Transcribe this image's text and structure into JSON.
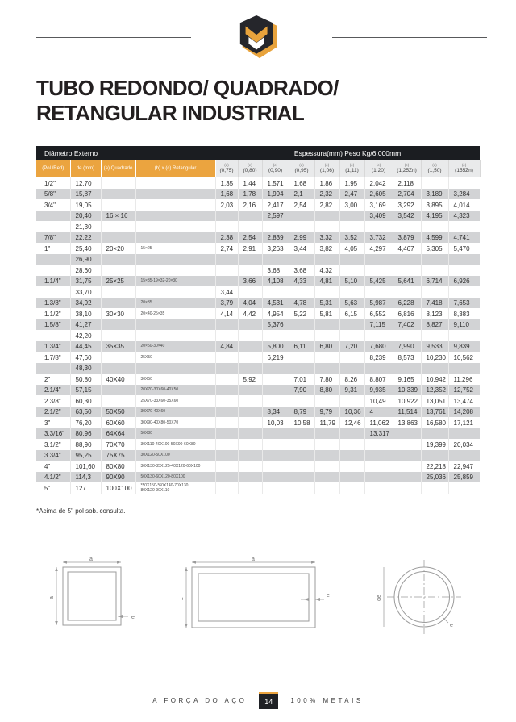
{
  "colors": {
    "accent": "#E8A33C",
    "header_dark": "#1B1D21",
    "row_alt": "#D2D3D5",
    "subheader_gray": "#E9EAEB"
  },
  "title": {
    "line1": "TUBO REDONDO/ QUADRADO/",
    "line2": "RETANGULAR INDUSTRIAL"
  },
  "table": {
    "group_headers": [
      "Diâmetro Externo",
      "Espessura(mm) Peso Kg/6.000mm"
    ],
    "dim_columns": [
      "(Pol./Red)",
      "de (mm)",
      "(a) Quadrado",
      "(b) x (c) Retangular"
    ],
    "thickness_unit": "(e)",
    "thickness_columns": [
      "(0,75)",
      "(0,80)",
      "(0,90)",
      "(0,95)",
      "(1,06)",
      "(1,11)",
      "(1,20)",
      "(1,25Zn)",
      "(1,50)",
      "(155Zn)"
    ],
    "rows": [
      {
        "pol": "1/2\"",
        "mm": "12,70",
        "quad": "",
        "ret": "",
        "vals": [
          "1,35",
          "1,44",
          "1,571",
          "1,68",
          "1,86",
          "1,95",
          "2,042",
          "2,118",
          "",
          ""
        ]
      },
      {
        "pol": "5/8\"",
        "mm": "15,87",
        "quad": "",
        "ret": "",
        "vals": [
          "1,68",
          "1,78",
          "1,994",
          "2,1",
          "2,32",
          "2,47",
          "2,605",
          "2,704",
          "3,189",
          "3,284"
        ]
      },
      {
        "pol": "3/4\"",
        "mm": "19,05",
        "quad": "",
        "ret": "",
        "vals": [
          "2,03",
          "2,16",
          "2,417",
          "2,54",
          "2,82",
          "3,00",
          "3,169",
          "3,292",
          "3,895",
          "4,014"
        ]
      },
      {
        "pol": "",
        "mm": "20,40",
        "quad": "16 × 16",
        "ret": "",
        "vals": [
          "",
          "",
          "2,597",
          "",
          "",
          "",
          "3,409",
          "3,542",
          "4,195",
          "4,323"
        ]
      },
      {
        "pol": "",
        "mm": "21,30",
        "quad": "",
        "ret": "",
        "vals": [
          "",
          "",
          "",
          "",
          "",
          "",
          "",
          "",
          "",
          ""
        ]
      },
      {
        "pol": "7/8\"",
        "mm": "22,22",
        "quad": "",
        "ret": "",
        "vals": [
          "2,38",
          "2,54",
          "2,839",
          "2,99",
          "3,32",
          "3,52",
          "3,732",
          "3,879",
          "4,599",
          "4,741"
        ]
      },
      {
        "pol": "1\"",
        "mm": "25,40",
        "quad": "20×20",
        "ret": "15×25",
        "vals": [
          "2,74",
          "2,91",
          "3,263",
          "3,44",
          "3,82",
          "4,05",
          "4,297",
          "4,467",
          "5,305",
          "5,470"
        ]
      },
      {
        "pol": "",
        "mm": "26,90",
        "quad": "",
        "ret": "",
        "vals": [
          "",
          "",
          "",
          "",
          "",
          "",
          "",
          "",
          "",
          ""
        ]
      },
      {
        "pol": "",
        "mm": "28,60",
        "quad": "",
        "ret": "",
        "vals": [
          "",
          "",
          "3,68",
          "3,68",
          "4,32",
          "",
          "",
          "",
          "",
          ""
        ]
      },
      {
        "pol": "1.1/4\"",
        "mm": "31,75",
        "quad": "25×25",
        "ret": "15×35-19×32-20×30",
        "vals": [
          "",
          "3,66",
          "4,108",
          "4,33",
          "4,81",
          "5,10",
          "5,425",
          "5,641",
          "6,714",
          "6,926"
        ]
      },
      {
        "pol": "",
        "mm": "33,70",
        "quad": "",
        "ret": "",
        "vals": [
          "3,44",
          "",
          "",
          "",
          "",
          "",
          "",
          "",
          "",
          ""
        ]
      },
      {
        "pol": "1.3/8\"",
        "mm": "34,92",
        "quad": "",
        "ret": "20×35",
        "vals": [
          "3,79",
          "4,04",
          "4,531",
          "4,78",
          "5,31",
          "5,63",
          "5,987",
          "6,228",
          "7,418",
          "7,653"
        ]
      },
      {
        "pol": "1.1/2\"",
        "mm": "38,10",
        "quad": "30×30",
        "ret": "20×40-25×35",
        "vals": [
          "4,14",
          "4,42",
          "4,954",
          "5,22",
          "5,81",
          "6,15",
          "6,552",
          "6,816",
          "8,123",
          "8,383"
        ]
      },
      {
        "pol": "1.5/8\"",
        "mm": "41,27",
        "quad": "",
        "ret": "",
        "vals": [
          "",
          "",
          "5,376",
          "",
          "",
          "",
          "7,115",
          "7,402",
          "8,827",
          "9,110"
        ]
      },
      {
        "pol": "",
        "mm": "42,20",
        "quad": "",
        "ret": "",
        "vals": [
          "",
          "",
          "",
          "",
          "",
          "",
          "",
          "",
          "",
          ""
        ]
      },
      {
        "pol": "1.3/4\"",
        "mm": "44,45",
        "quad": "35×35",
        "ret": "20×50-30×40",
        "vals": [
          "4,84",
          "",
          "5,800",
          "6,11",
          "6,80",
          "7,20",
          "7,680",
          "7,990",
          "9,533",
          "9,839"
        ]
      },
      {
        "pol": "1.7/8\"",
        "mm": "47,60",
        "quad": "",
        "ret": "25X50",
        "vals": [
          "",
          "",
          "6,219",
          "",
          "",
          "",
          "8,239",
          "8,573",
          "10,230",
          "10,562"
        ]
      },
      {
        "pol": "",
        "mm": "48,30",
        "quad": "",
        "ret": "",
        "vals": [
          "",
          "",
          "",
          "",
          "",
          "",
          "",
          "",
          "",
          ""
        ]
      },
      {
        "pol": "2\"",
        "mm": "50,80",
        "quad": "40X40",
        "ret": "30X50",
        "vals": [
          "",
          "5,92",
          "",
          "7,01",
          "7,80",
          "8,26",
          "8,807",
          "9,165",
          "10,942",
          "11,296"
        ]
      },
      {
        "pol": "2.1/4\"",
        "mm": "57,15",
        "quad": "",
        "ret": "20X70-30X60-40X50",
        "vals": [
          "",
          "",
          "",
          "7,90",
          "8,80",
          "9,31",
          "9,935",
          "10,339",
          "12,352",
          "12,752"
        ]
      },
      {
        "pol": "2.3/8\"",
        "mm": "60,30",
        "quad": "",
        "ret": "25X70-33X60-35X60",
        "vals": [
          "",
          "",
          "",
          "",
          "",
          "",
          "10,49",
          "10,922",
          "13,051",
          "13,474"
        ]
      },
      {
        "pol": "2.1/2\"",
        "mm": "63,50",
        "quad": "50X50",
        "ret": "30X70-40X60",
        "vals": [
          "",
          "",
          "8,34",
          "8,79",
          "9,79",
          "10,36",
          "4",
          "11,514",
          "13,761",
          "14,208"
        ]
      },
      {
        "pol": "3\"",
        "mm": "76,20",
        "quad": "60X60",
        "ret": "30X90-40X80-50X70",
        "vals": [
          "",
          "",
          "10,03",
          "10,58",
          "11,79",
          "12,46",
          "11,062",
          "13,863",
          "16,580",
          "17,121"
        ]
      },
      {
        "pol": "3.3/16\"",
        "mm": "80,96",
        "quad": "64X64",
        "ret": "50X80",
        "vals": [
          "",
          "",
          "",
          "",
          "",
          "",
          "13,317",
          "",
          "",
          ""
        ]
      },
      {
        "pol": "3.1/2\"",
        "mm": "88,90",
        "quad": "70X70",
        "ret": "30X110-40X100-50X90-60X80",
        "vals": [
          "",
          "",
          "",
          "",
          "",
          "",
          "",
          "",
          "19,399",
          "20,034"
        ]
      },
      {
        "pol": "3.3/4\"",
        "mm": "95,25",
        "quad": "75X75",
        "ret": "30X120-50X100",
        "vals": [
          "",
          "",
          "",
          "",
          "",
          "",
          "",
          "",
          "",
          ""
        ]
      },
      {
        "pol": "4\"",
        "mm": "101,60",
        "quad": "80X80",
        "ret": "30X130-35X125-40X120-60X100",
        "vals": [
          "",
          "",
          "",
          "",
          "",
          "",
          "",
          "",
          "22,218",
          "22,947"
        ]
      },
      {
        "pol": "4.1/2\"",
        "mm": "114,3",
        "quad": "90X90",
        "ret": "50X130-60X120-80X100",
        "vals": [
          "",
          "",
          "",
          "",
          "",
          "",
          "",
          "",
          "25,036",
          "25,859"
        ]
      },
      {
        "pol": "5\"",
        "mm": "127",
        "quad": "100X100",
        "ret": "*50X150-*60X140-70X130\n80X120-90X110",
        "vals": [
          "",
          "",
          "",
          "",
          "",
          "",
          "",
          "",
          "",
          ""
        ]
      }
    ]
  },
  "footnote": "*Acima de 5\" pol sob. consulta.",
  "diagrams": {
    "square": {
      "top": "a",
      "side": "a",
      "wall": "e"
    },
    "rectangle": {
      "top": "a",
      "side": "b",
      "wall": "e"
    },
    "circle": {
      "diameter": "de",
      "wall": "e"
    }
  },
  "footer": {
    "tagline_left": "A FORÇA DO AÇO",
    "page_number": "14",
    "tagline_right": "100% METAIS"
  }
}
